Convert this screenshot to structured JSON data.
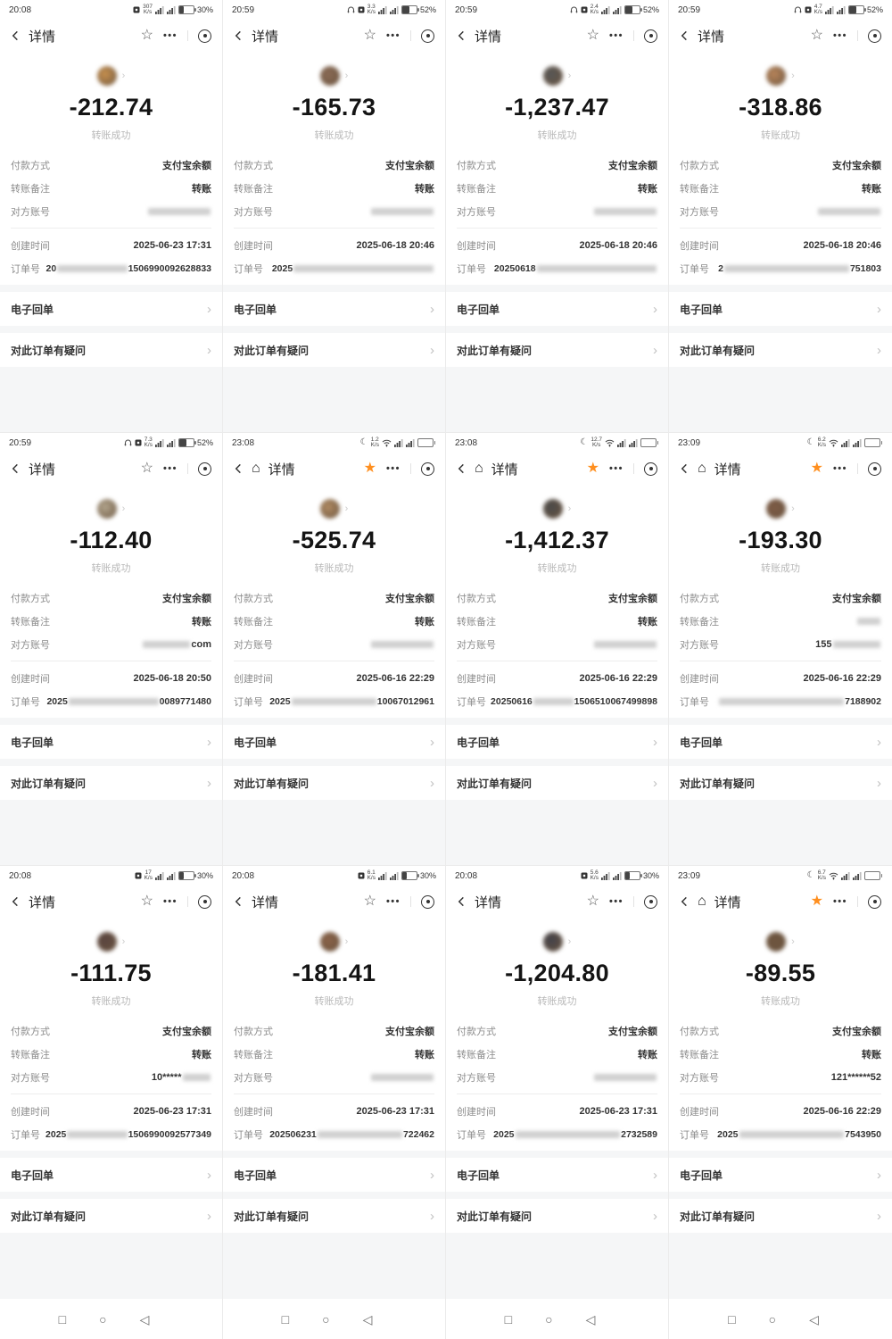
{
  "labels": {
    "nav_title": "详情",
    "status_success": "转账成功",
    "payment_method_label": "付款方式",
    "payment_method_value": "支付宝余额",
    "note_label": "转账备注",
    "account_label": "对方账号",
    "created_label": "创建时间",
    "order_label": "订单号",
    "receipt_link": "电子回单",
    "question_link": "对此订单有疑问",
    "more_dots": "•••",
    "speed_unit": "K/s",
    "back_glyph": "〈",
    "home_glyph": "⌂",
    "avatar_chevron": "›",
    "row_chevron": "›",
    "nav_square": "□",
    "nav_circle": "○",
    "nav_triangle": "◁"
  },
  "colors": {
    "accent_orange": "#ff8f1f",
    "section_gray": "#f5f6f7"
  },
  "cells": [
    {
      "time": "20:08",
      "speed": "307",
      "battery": "30%",
      "battery_percent": 30,
      "has_headphones": false,
      "has_moon": false,
      "has_vpn": true,
      "has_wifi": false,
      "has_home": false,
      "star": "outline",
      "amount": "-212.74",
      "created": "2025-06-23 17:31",
      "order_prefix": "20",
      "order_suffix": "1506990092628833",
      "account_pre": "",
      "account_tail": "",
      "account_bar": true,
      "note_text": "转账",
      "avatar_color": "#c9914e",
      "android_nav": false
    },
    {
      "time": "20:59",
      "speed": "3.3",
      "battery": "52%",
      "battery_percent": 52,
      "has_headphones": true,
      "has_moon": false,
      "has_vpn": true,
      "has_wifi": false,
      "has_home": false,
      "star": "outline",
      "amount": "-165.73",
      "created": "2025-06-18 20:46",
      "order_prefix": "2025",
      "order_suffix": "",
      "account_pre": "",
      "account_tail": "",
      "account_bar": true,
      "note_text": "转账",
      "avatar_color": "#8a6a55",
      "android_nav": false
    },
    {
      "time": "20:59",
      "speed": "2.4",
      "battery": "52%",
      "battery_percent": 52,
      "has_headphones": true,
      "has_moon": false,
      "has_vpn": true,
      "has_wifi": false,
      "has_home": false,
      "star": "outline",
      "amount": "-1,237.47",
      "created": "2025-06-18 20:46",
      "order_prefix": "20250618",
      "order_suffix": "",
      "account_pre": "",
      "account_tail": "",
      "account_bar": true,
      "note_text": "转账",
      "avatar_color": "#565656",
      "android_nav": false
    },
    {
      "time": "20:59",
      "speed": "4.7",
      "battery": "52%",
      "battery_percent": 52,
      "has_headphones": true,
      "has_moon": false,
      "has_vpn": true,
      "has_wifi": false,
      "has_home": false,
      "star": "outline",
      "amount": "-318.86",
      "created": "2025-06-18 20:46",
      "order_prefix": "2",
      "order_suffix": "751803",
      "account_pre": "",
      "account_tail": "",
      "account_bar": true,
      "note_text": "转账",
      "avatar_color": "#b9855a",
      "android_nav": false
    },
    {
      "time": "20:59",
      "speed": "7.3",
      "battery": "52%",
      "battery_percent": 52,
      "has_headphones": true,
      "has_moon": false,
      "has_vpn": true,
      "has_wifi": false,
      "has_home": false,
      "star": "outline",
      "amount": "-112.40",
      "created": "2025-06-18 20:50",
      "order_prefix": "2025",
      "order_suffix": "0089771480",
      "account_pre": "",
      "account_tail": "com",
      "account_bar": true,
      "note_text": "转账",
      "avatar_color": "#b3a68e",
      "android_nav": false
    },
    {
      "time": "23:08",
      "speed": "1.2",
      "battery": "",
      "battery_percent": 0,
      "has_headphones": false,
      "has_moon": true,
      "has_vpn": false,
      "has_wifi": true,
      "has_home": true,
      "star": "filled",
      "amount": "-525.74",
      "created": "2025-06-16 22:29",
      "order_prefix": "2025",
      "order_suffix": "10067012961",
      "account_pre": "",
      "account_tail": "",
      "account_bar": true,
      "note_text": "转账",
      "avatar_color": "#b08a62",
      "android_nav": false
    },
    {
      "time": "23:08",
      "speed": "12.7",
      "battery": "",
      "battery_percent": 0,
      "has_headphones": false,
      "has_moon": true,
      "has_vpn": false,
      "has_wifi": true,
      "has_home": true,
      "star": "filled",
      "amount": "-1,412.37",
      "created": "2025-06-16 22:29",
      "order_prefix": "20250616",
      "order_suffix": "1506510067499898",
      "account_pre": "",
      "account_tail": "",
      "account_bar": true,
      "note_text": "转账",
      "avatar_color": "#4a4a4a",
      "android_nav": false
    },
    {
      "time": "23:09",
      "speed": "6.2",
      "battery": "",
      "battery_percent": 0,
      "has_headphones": false,
      "has_moon": true,
      "has_vpn": false,
      "has_wifi": true,
      "has_home": true,
      "star": "filled",
      "amount": "-193.30",
      "created": "2025-06-16 22:29",
      "order_prefix": "",
      "order_suffix": "7188902",
      "account_pre": "155",
      "account_tail": "",
      "account_bar": true,
      "note_text": "",
      "avatar_color": "#7d5b45",
      "android_nav": false
    },
    {
      "time": "20:08",
      "speed": "17",
      "battery": "30%",
      "battery_percent": 30,
      "has_headphones": false,
      "has_moon": false,
      "has_vpn": true,
      "has_wifi": false,
      "has_home": false,
      "star": "outline",
      "amount": "-111.75",
      "created": "2025-06-23 17:31",
      "order_prefix": "2025",
      "order_suffix": "1506990092577349",
      "account_pre": "10*****",
      "account_tail": "",
      "account_bar": true,
      "note_text": "转账",
      "avatar_color": "#5a4540",
      "android_nav": true
    },
    {
      "time": "20:08",
      "speed": "6.1",
      "battery": "30%",
      "battery_percent": 30,
      "has_headphones": false,
      "has_moon": false,
      "has_vpn": true,
      "has_wifi": false,
      "has_home": false,
      "star": "outline",
      "amount": "-181.41",
      "created": "2025-06-23 17:31",
      "order_prefix": "202506231",
      "order_suffix": "722462",
      "account_pre": "",
      "account_tail": "",
      "account_bar": true,
      "note_text": "转账",
      "avatar_color": "#8a6248",
      "android_nav": true
    },
    {
      "time": "20:08",
      "speed": "5.6",
      "battery": "30%",
      "battery_percent": 30,
      "has_headphones": false,
      "has_moon": false,
      "has_vpn": true,
      "has_wifi": false,
      "has_home": false,
      "star": "outline",
      "amount": "-1,204.80",
      "created": "2025-06-23 17:31",
      "order_prefix": "2025",
      "order_suffix": "2732589",
      "account_pre": "",
      "account_tail": "",
      "account_bar": true,
      "note_text": "转账",
      "avatar_color": "#42424a",
      "android_nav": true
    },
    {
      "time": "23:09",
      "speed": "6.7",
      "battery": "",
      "battery_percent": 0,
      "has_headphones": false,
      "has_moon": true,
      "has_vpn": false,
      "has_wifi": true,
      "has_home": true,
      "star": "filled",
      "amount": "-89.55",
      "created": "2025-06-16 22:29",
      "order_prefix": "2025",
      "order_suffix": "7543950",
      "account_pre": "121******52",
      "account_tail": "",
      "account_bar": false,
      "note_text": "转账",
      "avatar_color": "#6e553f",
      "android_nav": true
    }
  ]
}
